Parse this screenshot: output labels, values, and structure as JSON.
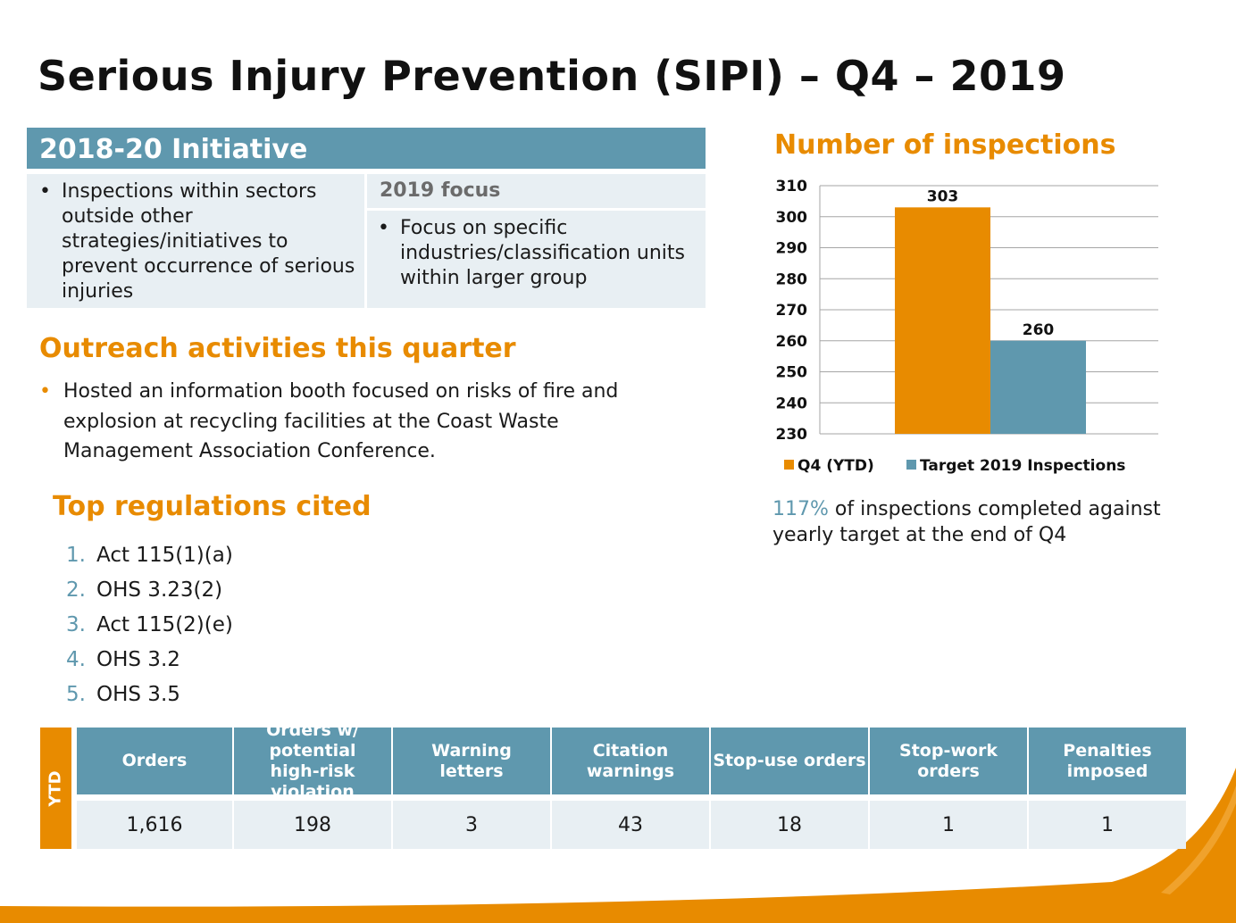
{
  "title": "Serious Injury Prevention (SIPI) – Q4 – 2019",
  "initiative": {
    "header": "2018-20 Initiative",
    "left_bullet": "Inspections within sectors outside other strategies/initiatives to prevent occurrence of serious injuries",
    "focus_header": "2019 focus",
    "focus_bullet": "Focus on specific industries/classification units within larger group"
  },
  "outreach": {
    "heading": "Outreach activities this quarter",
    "bullet": "Hosted an information booth focused on risks of fire and explosion at recycling facilities at the Coast Waste Management Association Conference."
  },
  "regulations": {
    "heading": "Top regulations cited",
    "items": [
      {
        "num": "1.",
        "text": "Act 115(1)(a)"
      },
      {
        "num": "2.",
        "text": "OHS 3.23(2)"
      },
      {
        "num": "3.",
        "text": "Act 115(2)(e)"
      },
      {
        "num": "4.",
        "text": "OHS 3.2"
      },
      {
        "num": "5.",
        "text": "OHS 3.5"
      }
    ]
  },
  "chart_data": {
    "type": "bar",
    "title": "Number of inspections",
    "ylim": [
      230,
      310
    ],
    "yticks": [
      310,
      300,
      290,
      280,
      270,
      260,
      250,
      240,
      230
    ],
    "grid": true,
    "legend_position": "bottom",
    "series": [
      {
        "name": "Q4 (YTD)",
        "value": 303,
        "label": "303",
        "color": "#e88b00"
      },
      {
        "name": "Target 2019 Inspections",
        "value": 260,
        "label": "260",
        "color": "#5f98ae"
      }
    ]
  },
  "stat": {
    "pct": "117%",
    "rest": " of inspections completed against yearly target at the end of Q4"
  },
  "ytd_table": {
    "side_label": "YTD",
    "headers": [
      "Orders",
      "Orders w/ potential high-risk violation",
      "Warning letters",
      "Citation warnings",
      "Stop-use orders",
      "Stop-work orders",
      "Penalties imposed"
    ],
    "values": [
      "1,616",
      "198",
      "3",
      "43",
      "18",
      "1",
      "1"
    ]
  },
  "colors": {
    "accent_orange": "#e88b00",
    "accent_blue": "#5f98ae",
    "light_cell": "#e8eff3"
  }
}
